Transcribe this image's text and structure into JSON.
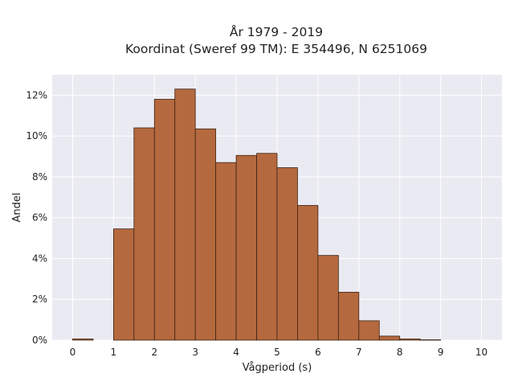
{
  "chart_data": {
    "type": "bar",
    "title": "År 1979 - 2019",
    "subtitle": "Koordinat (Sweref 99 TM): E 354496, N 6251069",
    "xlabel": "Vågperiod (s)",
    "ylabel": "Andel",
    "bin_width": 0.5,
    "x": [
      0,
      0.5,
      1,
      1.5,
      2,
      2.5,
      3,
      3.5,
      4,
      4.5,
      5,
      5.5,
      6,
      6.5,
      7,
      7.5,
      8,
      8.5,
      9,
      9.5
    ],
    "values": [
      0.06,
      0,
      5.45,
      10.4,
      11.8,
      12.3,
      10.35,
      8.7,
      9.05,
      9.15,
      8.45,
      6.6,
      4.15,
      2.35,
      0.95,
      0.2,
      0.06,
      0.02,
      0,
      0
    ],
    "xlim": [
      -0.5,
      10.5
    ],
    "ylim": [
      0,
      13
    ],
    "x_ticks": [
      0,
      1,
      2,
      3,
      4,
      5,
      6,
      7,
      8,
      9,
      10
    ],
    "y_ticks": [
      0,
      2,
      4,
      6,
      8,
      10,
      12
    ],
    "y_tick_labels": [
      "0%",
      "2%",
      "4%",
      "6%",
      "8%",
      "10%",
      "12%"
    ],
    "grid": true,
    "colors": {
      "bar": "#b5693e",
      "bar_edge": "#3b2314",
      "plot_background": "#eaeaf2",
      "grid": "#ffffff"
    }
  }
}
